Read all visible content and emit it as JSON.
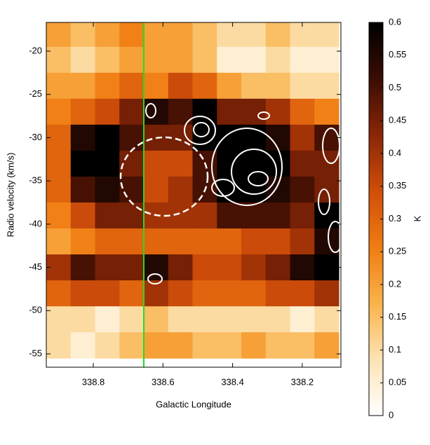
{
  "chart_data": {
    "type": "heatmap",
    "xlabel": "Galactic Longitude",
    "ylabel": "Radio velocity (km/s)",
    "colorbar_label": "K",
    "x": [
      338.9,
      338.83,
      338.76,
      338.69,
      338.62,
      338.55,
      338.48,
      338.41,
      338.34,
      338.27,
      338.2,
      338.13
    ],
    "y": [
      -18,
      -21,
      -24,
      -27,
      -30,
      -33,
      -36,
      -39,
      -42,
      -45,
      -48,
      -51,
      -54
    ],
    "z": [
      [
        0.2,
        0.15,
        0.2,
        0.25,
        0.2,
        0.2,
        0.15,
        0.1,
        0.1,
        0.15,
        0.1,
        0.1
      ],
      [
        0.15,
        0.1,
        0.15,
        0.2,
        0.2,
        0.2,
        0.15,
        0.05,
        0.05,
        0.1,
        0.05,
        0.05
      ],
      [
        0.2,
        0.2,
        0.25,
        0.3,
        0.25,
        0.35,
        0.3,
        0.2,
        0.15,
        0.15,
        0.1,
        0.1
      ],
      [
        0.25,
        0.3,
        0.35,
        0.45,
        0.55,
        0.5,
        0.6,
        0.45,
        0.45,
        0.4,
        0.3,
        0.25
      ],
      [
        0.3,
        0.55,
        0.6,
        0.5,
        0.45,
        0.45,
        0.6,
        0.6,
        0.6,
        0.55,
        0.4,
        0.5
      ],
      [
        0.3,
        0.6,
        0.6,
        0.45,
        0.35,
        0.35,
        0.5,
        0.6,
        0.6,
        0.6,
        0.45,
        0.45
      ],
      [
        0.3,
        0.5,
        0.55,
        0.5,
        0.35,
        0.4,
        0.5,
        0.6,
        0.6,
        0.55,
        0.5,
        0.45
      ],
      [
        0.25,
        0.35,
        0.45,
        0.45,
        0.4,
        0.4,
        0.4,
        0.5,
        0.5,
        0.5,
        0.45,
        0.6
      ],
      [
        0.2,
        0.25,
        0.3,
        0.3,
        0.3,
        0.3,
        0.3,
        0.3,
        0.35,
        0.35,
        0.4,
        0.55
      ],
      [
        0.4,
        0.5,
        0.45,
        0.45,
        0.55,
        0.45,
        0.35,
        0.35,
        0.4,
        0.45,
        0.55,
        0.6
      ],
      [
        0.3,
        0.35,
        0.35,
        0.3,
        0.4,
        0.35,
        0.3,
        0.3,
        0.3,
        0.35,
        0.35,
        0.4
      ],
      [
        0.1,
        0.1,
        0.05,
        0.1,
        0.15,
        0.1,
        0.1,
        0.1,
        0.1,
        0.1,
        0.05,
        0.1
      ],
      [
        0.1,
        0.05,
        0.1,
        0.15,
        0.2,
        0.2,
        0.15,
        0.15,
        0.2,
        0.15,
        0.15,
        0.2
      ]
    ],
    "colorscale": [
      "#ffffff",
      "#fde3b4",
      "#f9b24a",
      "#f07c12",
      "#d04e0a",
      "#8a2606",
      "#3a0d03",
      "#000000"
    ],
    "xlim": [
      338.935,
      338.089
    ],
    "xticks": [
      338.8,
      338.6,
      338.4,
      338.2
    ],
    "ylim": [
      -56.54,
      -16.68
    ],
    "yticks": [
      -20,
      -25,
      -30,
      -35,
      -40,
      -45,
      -50,
      -55
    ],
    "zlim": [
      0,
      0.6
    ],
    "zticks": [
      0,
      0.05,
      0.1,
      0.15,
      0.2,
      0.25,
      0.3,
      0.35,
      0.4,
      0.45,
      0.5,
      0.55,
      0.6
    ]
  }
}
